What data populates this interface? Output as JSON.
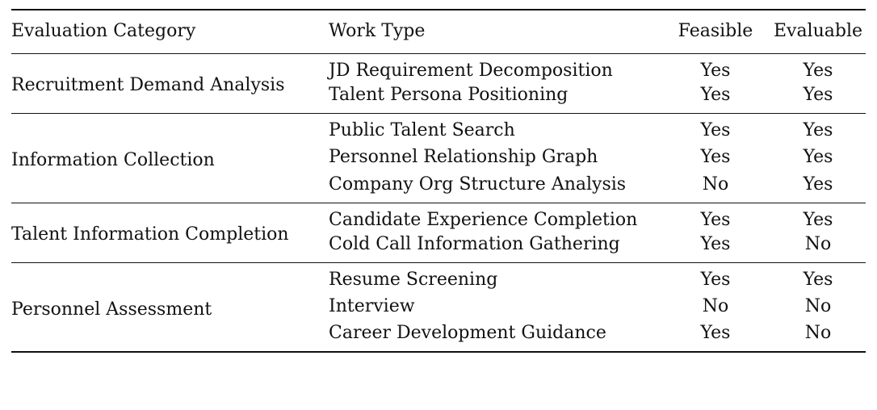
{
  "table": {
    "headers": [
      "Evaluation Category",
      "Work Type",
      "Feasible",
      "Evaluable"
    ],
    "groups": [
      {
        "category": "Recruitment Demand Analysis",
        "rows": [
          {
            "work_type": "JD Requirement Decomposition",
            "feasible": "Yes",
            "evaluable": "Yes"
          },
          {
            "work_type": "Talent Persona Positioning",
            "feasible": "Yes",
            "evaluable": "Yes"
          }
        ]
      },
      {
        "category": "Information Collection",
        "rows": [
          {
            "work_type": "Public Talent Search",
            "feasible": "Yes",
            "evaluable": "Yes"
          },
          {
            "work_type": "Personnel Relationship Graph",
            "feasible": "Yes",
            "evaluable": "Yes"
          },
          {
            "work_type": "Company Org Structure Analysis",
            "feasible": "No",
            "evaluable": "Yes"
          }
        ]
      },
      {
        "category": "Talent Information Completion",
        "rows": [
          {
            "work_type": "Candidate Experience Completion",
            "feasible": "Yes",
            "evaluable": "Yes"
          },
          {
            "work_type": "Cold Call Information Gathering",
            "feasible": "Yes",
            "evaluable": "No"
          }
        ]
      },
      {
        "category": "Personnel Assessment",
        "rows": [
          {
            "work_type": "Resume Screening",
            "feasible": "Yes",
            "evaluable": "Yes"
          },
          {
            "work_type": "Interview",
            "feasible": "No",
            "evaluable": "No"
          },
          {
            "work_type": "Career Development Guidance",
            "feasible": "Yes",
            "evaluable": "No"
          }
        ]
      }
    ]
  }
}
